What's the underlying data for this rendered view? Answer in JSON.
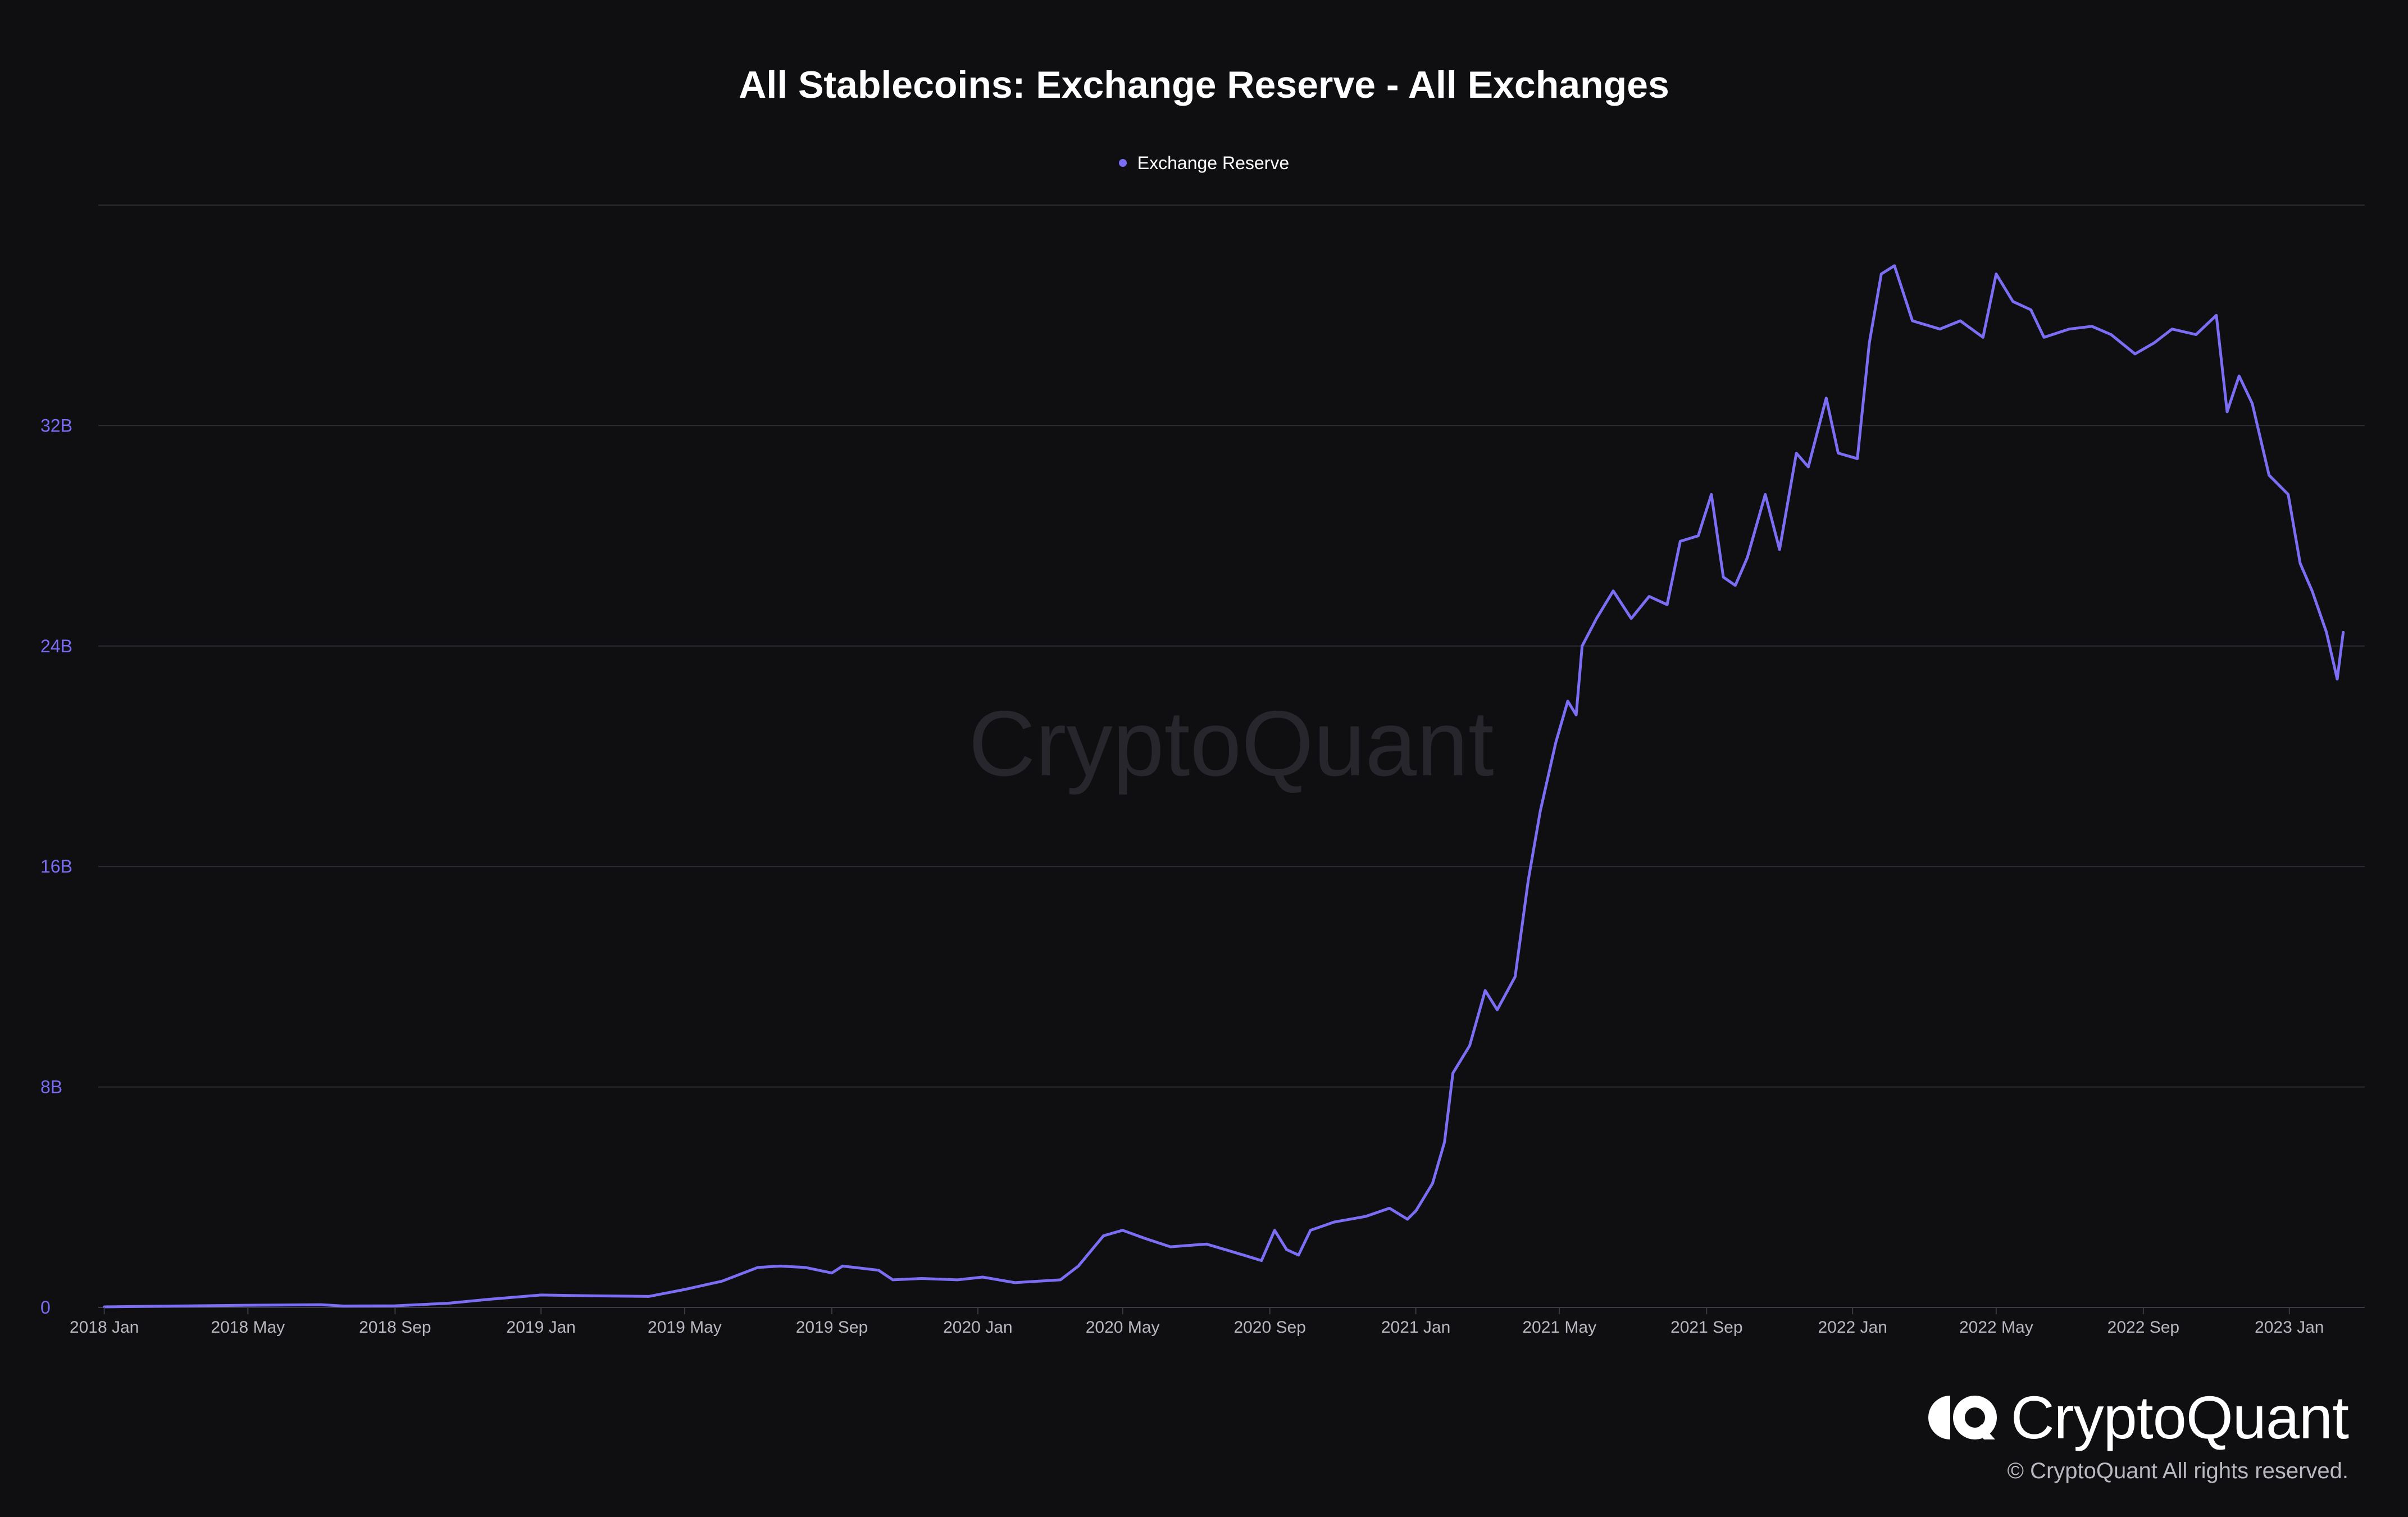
{
  "chart_data": {
    "type": "line",
    "title": "All Stablecoins: Exchange Reserve - All Exchanges",
    "xlabel": "",
    "ylabel": "",
    "legend": {
      "placement": "top-center"
    },
    "grid": true,
    "watermark": "CryptoQuant",
    "x_ticks": [
      "2018 Jan",
      "2018 May",
      "2018 Sep",
      "2019 Jan",
      "2019 May",
      "2019 Sep",
      "2020 Jan",
      "2020 May",
      "2020 Sep",
      "2021 Jan",
      "2021 May",
      "2021 Sep",
      "2022 Jan",
      "2022 May",
      "2022 Sep",
      "2023 Jan"
    ],
    "y_ticks": [
      {
        "value": 0,
        "label": "0"
      },
      {
        "value": 8000000000,
        "label": "8B"
      },
      {
        "value": 16000000000,
        "label": "16B"
      },
      {
        "value": 24000000000,
        "label": "24B"
      },
      {
        "value": 32000000000,
        "label": "32B"
      }
    ],
    "xlim": [
      "2017-12-27",
      "2023-03-05"
    ],
    "ylim": [
      0,
      40000000000
    ],
    "series": [
      {
        "name": "Exchange Reserve",
        "color": "#7b6ef5",
        "points": [
          [
            "2018-01-01",
            0.02
          ],
          [
            "2018-03-01",
            0.05
          ],
          [
            "2018-05-01",
            0.08
          ],
          [
            "2018-07-01",
            0.1
          ],
          [
            "2018-07-20",
            0.05
          ],
          [
            "2018-09-01",
            0.06
          ],
          [
            "2018-10-15",
            0.15
          ],
          [
            "2018-11-20",
            0.3
          ],
          [
            "2019-01-01",
            0.45
          ],
          [
            "2019-02-15",
            0.42
          ],
          [
            "2019-04-01",
            0.4
          ],
          [
            "2019-05-01",
            0.65
          ],
          [
            "2019-06-01",
            0.95
          ],
          [
            "2019-07-01",
            1.45
          ],
          [
            "2019-07-20",
            1.5
          ],
          [
            "2019-08-10",
            1.45
          ],
          [
            "2019-09-01",
            1.25
          ],
          [
            "2019-09-10",
            1.5
          ],
          [
            "2019-10-10",
            1.35
          ],
          [
            "2019-10-22",
            1.0
          ],
          [
            "2019-11-15",
            1.05
          ],
          [
            "2019-12-15",
            1.0
          ],
          [
            "2020-01-05",
            1.1
          ],
          [
            "2020-02-01",
            0.9
          ],
          [
            "2020-03-10",
            1.0
          ],
          [
            "2020-03-25",
            1.5
          ],
          [
            "2020-04-15",
            2.6
          ],
          [
            "2020-05-01",
            2.8
          ],
          [
            "2020-05-20",
            2.5
          ],
          [
            "2020-06-10",
            2.2
          ],
          [
            "2020-07-10",
            2.3
          ],
          [
            "2020-08-10",
            1.9
          ],
          [
            "2020-08-25",
            1.7
          ],
          [
            "2020-09-05",
            2.8
          ],
          [
            "2020-09-15",
            2.1
          ],
          [
            "2020-09-25",
            1.9
          ],
          [
            "2020-10-05",
            2.8
          ],
          [
            "2020-10-25",
            3.1
          ],
          [
            "2020-11-20",
            3.3
          ],
          [
            "2020-12-10",
            3.6
          ],
          [
            "2020-12-25",
            3.2
          ],
          [
            "2021-01-01",
            3.5
          ],
          [
            "2021-01-15",
            4.5
          ],
          [
            "2021-01-25",
            6.0
          ],
          [
            "2021-02-01",
            8.5
          ],
          [
            "2021-02-15",
            9.5
          ],
          [
            "2021-02-28",
            11.5
          ],
          [
            "2021-03-10",
            10.8
          ],
          [
            "2021-03-25",
            12.0
          ],
          [
            "2021-04-05",
            15.5
          ],
          [
            "2021-04-15",
            18.0
          ],
          [
            "2021-04-28",
            20.5
          ],
          [
            "2021-05-08",
            22.0
          ],
          [
            "2021-05-15",
            21.5
          ],
          [
            "2021-05-20",
            24.0
          ],
          [
            "2021-06-01",
            25.0
          ],
          [
            "2021-06-15",
            26.0
          ],
          [
            "2021-06-30",
            25.0
          ],
          [
            "2021-07-15",
            25.8
          ],
          [
            "2021-07-30",
            25.5
          ],
          [
            "2021-08-10",
            27.8
          ],
          [
            "2021-08-25",
            28.0
          ],
          [
            "2021-09-05",
            29.5
          ],
          [
            "2021-09-15",
            26.5
          ],
          [
            "2021-09-25",
            26.2
          ],
          [
            "2021-10-05",
            27.2
          ],
          [
            "2021-10-20",
            29.5
          ],
          [
            "2021-11-01",
            27.5
          ],
          [
            "2021-11-15",
            31.0
          ],
          [
            "2021-11-25",
            30.5
          ],
          [
            "2021-12-10",
            33.0
          ],
          [
            "2021-12-20",
            31.0
          ],
          [
            "2022-01-05",
            30.8
          ],
          [
            "2022-01-15",
            35.0
          ],
          [
            "2022-01-25",
            37.5
          ],
          [
            "2022-02-05",
            37.8
          ],
          [
            "2022-02-20",
            35.8
          ],
          [
            "2022-03-15",
            35.5
          ],
          [
            "2022-04-01",
            35.8
          ],
          [
            "2022-04-20",
            35.2
          ],
          [
            "2022-05-01",
            37.5
          ],
          [
            "2022-05-15",
            36.5
          ],
          [
            "2022-05-30",
            36.2
          ],
          [
            "2022-06-10",
            35.2
          ],
          [
            "2022-07-01",
            35.5
          ],
          [
            "2022-07-20",
            35.6
          ],
          [
            "2022-08-05",
            35.3
          ],
          [
            "2022-08-25",
            34.6
          ],
          [
            "2022-09-10",
            35.0
          ],
          [
            "2022-09-25",
            35.5
          ],
          [
            "2022-10-15",
            35.3
          ],
          [
            "2022-11-01",
            36.0
          ],
          [
            "2022-11-10",
            32.5
          ],
          [
            "2022-11-20",
            33.8
          ],
          [
            "2022-12-01",
            32.8
          ],
          [
            "2022-12-15",
            30.2
          ],
          [
            "2022-12-31",
            29.5
          ],
          [
            "2023-01-10",
            27.0
          ],
          [
            "2023-01-20",
            26.0
          ],
          [
            "2023-02-01",
            24.5
          ],
          [
            "2023-02-10",
            22.8
          ],
          [
            "2023-02-15",
            24.5
          ]
        ]
      }
    ]
  },
  "brand": {
    "name": "CryptoQuant",
    "copyright": "© CryptoQuant All rights reserved."
  },
  "colors": {
    "background": "#0f0f12",
    "accent": "#7b6ef5",
    "grid": "#2c2c33"
  }
}
